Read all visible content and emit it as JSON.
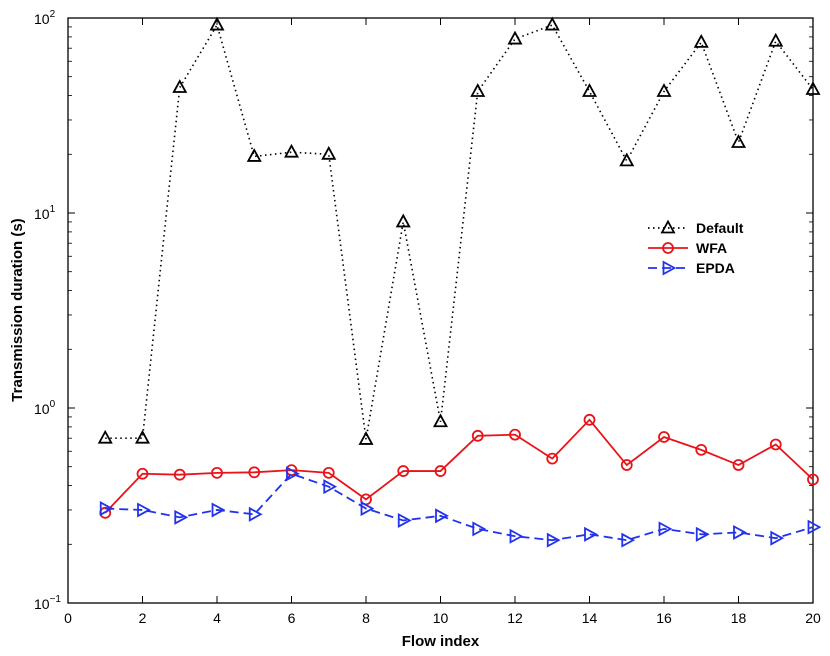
{
  "chart_data": {
    "type": "line",
    "title": "",
    "xlabel": "Flow index",
    "ylabel": "Transmission duration (s)",
    "xlim": [
      0,
      20
    ],
    "ylim": [
      0.1,
      100
    ],
    "yscale": "log",
    "xticks": [
      0,
      2,
      4,
      6,
      8,
      10,
      12,
      14,
      16,
      18,
      20
    ],
    "yticks": [
      {
        "value": 0.1,
        "base": "10",
        "exp": "−1"
      },
      {
        "value": 1,
        "base": "10",
        "exp": "0"
      },
      {
        "value": 10,
        "base": "10",
        "exp": "1"
      },
      {
        "value": 100,
        "base": "10",
        "exp": "2"
      }
    ],
    "grid": false,
    "legend_position": "right",
    "x": [
      1,
      2,
      3,
      4,
      5,
      6,
      7,
      8,
      9,
      10,
      11,
      12,
      13,
      14,
      15,
      16,
      17,
      18,
      19,
      20
    ],
    "series": [
      {
        "name": "Default",
        "color": "#000000",
        "line": "dotted",
        "marker": "triangle-up",
        "values": [
          0.7,
          0.7,
          44,
          92,
          19.5,
          20.5,
          20,
          0.69,
          9,
          0.85,
          42,
          78,
          92,
          42,
          18.5,
          42,
          75,
          23,
          76,
          43
        ]
      },
      {
        "name": "WFA",
        "color": "#e8141a",
        "line": "solid",
        "marker": "circle",
        "values": [
          0.29,
          0.46,
          0.455,
          0.465,
          0.468,
          0.48,
          0.465,
          0.34,
          0.475,
          0.475,
          0.72,
          0.73,
          0.55,
          0.87,
          0.51,
          0.71,
          0.61,
          0.51,
          0.65,
          0.43
        ]
      },
      {
        "name": "EPDA",
        "color": "#2233ee",
        "line": "dashed",
        "marker": "triangle-right",
        "values": [
          0.305,
          0.3,
          0.275,
          0.3,
          0.285,
          0.46,
          0.395,
          0.305,
          0.265,
          0.28,
          0.24,
          0.22,
          0.21,
          0.225,
          0.21,
          0.24,
          0.225,
          0.23,
          0.215,
          0.245
        ]
      }
    ]
  }
}
